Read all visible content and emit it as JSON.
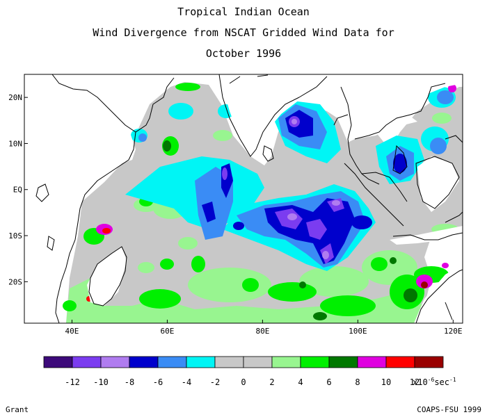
{
  "title": {
    "line1": "Tropical Indian Ocean",
    "line2": "Wind Divergence from NSCAT Gridded Wind Data for",
    "line3": "October 1996"
  },
  "map": {
    "lon_range": [
      30,
      122
    ],
    "lat_range": [
      -29,
      25
    ],
    "lat_ticks": [
      {
        "value": 20,
        "label": "20N"
      },
      {
        "value": 10,
        "label": "10N"
      },
      {
        "value": 0,
        "label": "EQ"
      },
      {
        "value": -10,
        "label": "10S"
      },
      {
        "value": -20,
        "label": "20S"
      }
    ],
    "lon_ticks": [
      {
        "value": 40,
        "label": "40E"
      },
      {
        "value": 60,
        "label": "60E"
      },
      {
        "value": 80,
        "label": "80E"
      },
      {
        "value": 100,
        "label": "100E"
      },
      {
        "value": 120,
        "label": "120E"
      }
    ]
  },
  "colorbar": {
    "colors": [
      "#3d0a7a",
      "#7b3cf0",
      "#b07cf0",
      "#0000cc",
      "#3a8cf5",
      "#00f5f5",
      "#c8c8c8",
      "#c8c8c8",
      "#98f590",
      "#00f000",
      "#007800",
      "#e000e0",
      "#ff0000",
      "#990000"
    ],
    "labels": [
      "-12",
      "-10",
      "-8",
      "-6",
      "-4",
      "-2",
      "0",
      "2",
      "4",
      "6",
      "8",
      "10",
      "12"
    ],
    "unit_prefix": "x10",
    "unit_exp1": "-6",
    "unit_mid": "sec",
    "unit_exp2": "-1"
  },
  "footer": {
    "left": "Grant",
    "right": "COAPS-FSU 1999"
  }
}
